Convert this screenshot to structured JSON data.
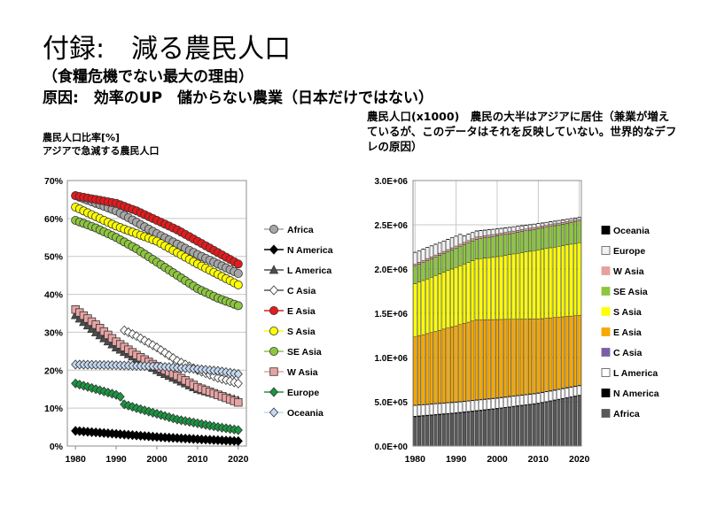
{
  "title": "付録:　減る農民人口",
  "subtitle1": "（食糧危機でない最大の理由）",
  "subtitle2": "原因:　効率のUP　儲からない農業（日本だけではない）",
  "left_caption1": "農民人口比率[%]",
  "left_caption2": "アジアで急減する農民人口",
  "right_caption": "農民人口(x1000)　農民の大半はアジアに居住（兼業が増えているが、このデータはそれを反映していない。世界的なデフレの原因）",
  "chart_data": [
    {
      "type": "line",
      "title": "農民人口比率[%]",
      "x_ticks": [
        1980,
        1990,
        2000,
        2010,
        2020
      ],
      "y_ticks": [
        "0%",
        "10%",
        "20%",
        "30%",
        "40%",
        "50%",
        "60%",
        "70%"
      ],
      "ylim": [
        0,
        70
      ],
      "xlim": [
        1978,
        2022
      ],
      "legend_position": "right",
      "series": [
        {
          "name": "Africa",
          "color": "#a6a6a6",
          "marker": "circle",
          "points": [
            [
              1980,
              66
            ],
            [
              1990,
              62
            ],
            [
              2000,
              56
            ],
            [
              2010,
              50.5
            ],
            [
              2020,
              45.5
            ]
          ]
        },
        {
          "name": "N America",
          "color": "#000000",
          "marker": "diamond",
          "points": [
            [
              1980,
              4
            ],
            [
              1990,
              3.2
            ],
            [
              2000,
              2.4
            ],
            [
              2010,
              1.8
            ],
            [
              2020,
              1.3
            ]
          ]
        },
        {
          "name": "L America",
          "color": "#4d4d4d",
          "marker": "triangle",
          "points": [
            [
              1980,
              34.5
            ],
            [
              1985,
              30
            ],
            [
              1990,
              26
            ],
            [
              1995,
              23
            ],
            [
              2000,
              20
            ],
            [
              2005,
              17.5
            ],
            [
              2010,
              15
            ],
            [
              2015,
              13.5
            ],
            [
              2020,
              12
            ]
          ]
        },
        {
          "name": "C Asia",
          "color": "#ffffff",
          "marker": "diamond",
          "points": [
            [
              1992,
              30.5
            ],
            [
              1995,
              29
            ],
            [
              2000,
              26
            ],
            [
              2005,
              22.5
            ],
            [
              2010,
              20
            ],
            [
              2015,
              18
            ],
            [
              2020,
              16.5
            ]
          ]
        },
        {
          "name": "E Asia",
          "color": "#e41a1c",
          "marker": "circle",
          "points": [
            [
              1980,
              66
            ],
            [
              1985,
              65
            ],
            [
              1990,
              64
            ],
            [
              1995,
              62
            ],
            [
              2000,
              59.5
            ],
            [
              2005,
              57
            ],
            [
              2010,
              54
            ],
            [
              2015,
              51
            ],
            [
              2020,
              48
            ]
          ]
        },
        {
          "name": "S Asia",
          "color": "#ffff00",
          "marker": "circle",
          "points": [
            [
              1980,
              63
            ],
            [
              1990,
              58
            ],
            [
              2000,
              54
            ],
            [
              2010,
              48
            ],
            [
              2020,
              42.5
            ]
          ]
        },
        {
          "name": "SE Asia",
          "color": "#8dc63f",
          "marker": "circle",
          "points": [
            [
              1980,
              59.5
            ],
            [
              1985,
              57.5
            ],
            [
              1990,
              55
            ],
            [
              1995,
              52
            ],
            [
              2000,
              48.5
            ],
            [
              2005,
              45
            ],
            [
              2010,
              41.5
            ],
            [
              2015,
              39
            ],
            [
              2020,
              37
            ]
          ]
        },
        {
          "name": "W Asia",
          "color": "#e7a3a3",
          "marker": "square",
          "points": [
            [
              1980,
              36
            ],
            [
              1985,
              32
            ],
            [
              1990,
              27.5
            ],
            [
              1995,
              24
            ],
            [
              2000,
              21
            ],
            [
              2005,
              18.5
            ],
            [
              2010,
              15.5
            ],
            [
              2015,
              13.5
            ],
            [
              2020,
              11.5
            ]
          ]
        },
        {
          "name": "Europe",
          "color": "#1a9641",
          "marker": "diamond",
          "points": [
            [
              1980,
              16.5
            ],
            [
              1985,
              15
            ],
            [
              1990,
              13.5
            ],
            [
              1991,
              13
            ],
            [
              1992,
              11
            ],
            [
              1995,
              10
            ],
            [
              2000,
              8.5
            ],
            [
              2005,
              7
            ],
            [
              2010,
              6
            ],
            [
              2015,
              5
            ],
            [
              2020,
              4.2
            ]
          ]
        },
        {
          "name": "Oceania",
          "color": "#c5d9f1",
          "marker": "diamond",
          "points": [
            [
              1980,
              21.5
            ],
            [
              1990,
              21.3
            ],
            [
              2000,
              21
            ],
            [
              2010,
              20.3
            ],
            [
              2015,
              19.8
            ],
            [
              2020,
              19
            ]
          ]
        }
      ]
    },
    {
      "type": "bar",
      "stacked": true,
      "title": "農民人口(x1000)",
      "x_ticks": [
        1980,
        1990,
        2000,
        2010,
        2020
      ],
      "y_ticks": [
        "0.0E+00",
        "5.0E+05",
        "1.0E+06",
        "1.5E+06",
        "2.0E+06",
        "2.5E+06",
        "3.0E+06"
      ],
      "ylim": [
        0,
        3000000
      ],
      "years": [
        1980,
        2020
      ],
      "legend_position": "right",
      "series": [
        {
          "name": "Oceania",
          "color": "#000000",
          "anchors": [
            [
              1980,
              3000
            ],
            [
              2020,
              3500
            ]
          ]
        },
        {
          "name": "Europe",
          "color": "#f2f2f2",
          "anchors": [
            [
              1980,
              130000
            ],
            [
              1990,
              110000
            ],
            [
              1991,
              110000
            ],
            [
              1992,
              75000
            ],
            [
              2000,
              55000
            ],
            [
              2010,
              35000
            ],
            [
              2020,
              20000
            ]
          ]
        },
        {
          "name": "W Asia",
          "color": "#e6a0a0",
          "anchors": [
            [
              1980,
              25000
            ],
            [
              2020,
              20000
            ]
          ]
        },
        {
          "name": "SE Asia",
          "color": "#8dc63f",
          "anchors": [
            [
              1980,
              200000
            ],
            [
              2000,
              235000
            ],
            [
              2020,
              245000
            ]
          ]
        },
        {
          "name": "S Asia",
          "color": "#ffff00",
          "anchors": [
            [
              1980,
              600000
            ],
            [
              1990,
              660000
            ],
            [
              2000,
              710000
            ],
            [
              2010,
              780000
            ],
            [
              2020,
              820000
            ]
          ]
        },
        {
          "name": "E Asia",
          "color": "#f5a800",
          "anchors": [
            [
              1980,
              770000
            ],
            [
              1990,
              860000
            ],
            [
              1995,
              905000
            ],
            [
              2000,
              885000
            ],
            [
              2010,
              835000
            ],
            [
              2020,
              790000
            ]
          ]
        },
        {
          "name": "C Asia",
          "color": "#7b5fa6",
          "anchors": [
            [
              1980,
              5000
            ],
            [
              2020,
              7000
            ]
          ]
        },
        {
          "name": "L America",
          "color": "#ffffff",
          "anchors": [
            [
              1980,
              120000
            ],
            [
              2020,
              105000
            ]
          ]
        },
        {
          "name": "N America",
          "color": "#000000",
          "anchors": [
            [
              1980,
              8000
            ],
            [
              2020,
              5000
            ]
          ]
        },
        {
          "name": "Africa",
          "color": "#595959",
          "anchors": [
            [
              1980,
              330000
            ],
            [
              1990,
              370000
            ],
            [
              2000,
              420000
            ],
            [
              2010,
              480000
            ],
            [
              2020,
              570000
            ]
          ]
        }
      ]
    }
  ]
}
